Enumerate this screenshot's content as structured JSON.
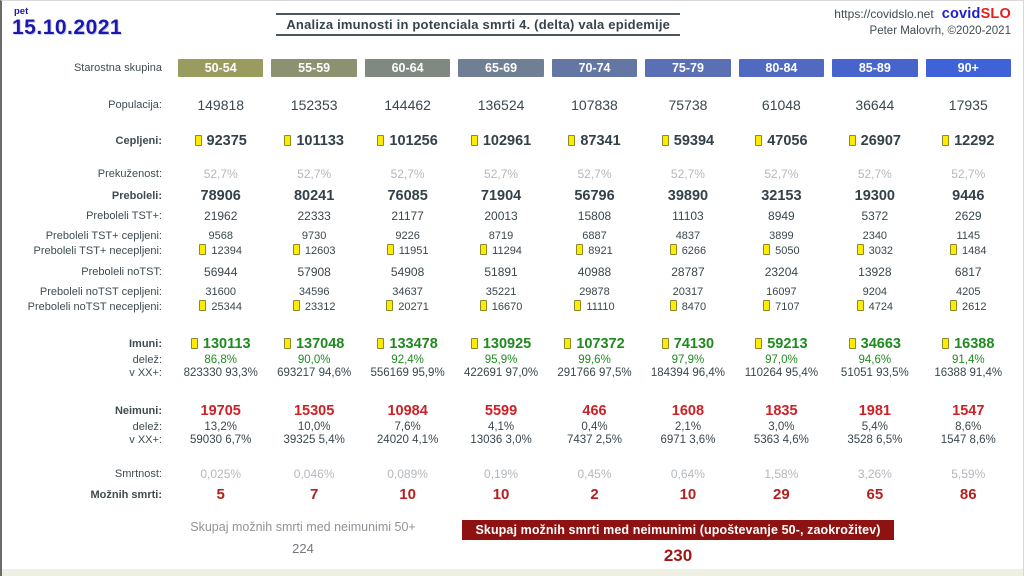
{
  "header": {
    "weekday": "pet",
    "date": "15.10.2021",
    "title": "Analiza imunosti in potenciala smrti 4. (delta) vala epidemije",
    "site_url": "https://covidslo.net",
    "brand": {
      "covid": "covid",
      "slo": "SLO"
    },
    "author": "Peter Malovrh, ©2020-2021"
  },
  "table": {
    "age_group_label": "Starostna skupina",
    "age_groups": [
      {
        "label": "50-54",
        "color": "#9a9b5f"
      },
      {
        "label": "55-59",
        "color": "#8b9171"
      },
      {
        "label": "60-64",
        "color": "#7f8982"
      },
      {
        "label": "65-69",
        "color": "#707f93"
      },
      {
        "label": "70-74",
        "color": "#6476a4"
      },
      {
        "label": "75-79",
        "color": "#5a6fb4"
      },
      {
        "label": "80-84",
        "color": "#5069c1"
      },
      {
        "label": "85-89",
        "color": "#4764cd"
      },
      {
        "label": "90+",
        "color": "#3f62d8"
      }
    ],
    "labels": {
      "populacija": "Populacija:",
      "cepljeni": "Cepljeni:",
      "prekuzenost": "Prekuženost:",
      "preboleli": "Preboleli:",
      "preboleli_tst": "Preboleli TST+:",
      "preboleli_tst_cepljeni": "Preboleli TST+ cepljeni:",
      "preboleli_tst_necepljeni": "Preboleli TST+ necepljeni:",
      "preboleli_notst": "Preboleli noTST:",
      "preboleli_notst_cepljeni": "Preboleli noTST cepljeni:",
      "preboleli_notst_necepljeni": "Preboleli noTST necepljeni:",
      "imuni": "Imuni:",
      "delez": "delež:",
      "v_xx": "v XX+:",
      "neimuni": "Neimuni:",
      "smrtnost": "Smrtnost:",
      "moznih_smrti": "Možnih smrti:"
    },
    "values": {
      "populacija": [
        "149818",
        "152353",
        "144462",
        "136524",
        "107838",
        "75738",
        "61048",
        "36644",
        "17935"
      ],
      "cepljeni": [
        "92375",
        "101133",
        "101256",
        "102961",
        "87341",
        "59394",
        "47056",
        "26907",
        "12292"
      ],
      "prekuzenost": [
        "52,7%",
        "52,7%",
        "52,7%",
        "52,7%",
        "52,7%",
        "52,7%",
        "52,7%",
        "52,7%",
        "52,7%"
      ],
      "preboleli": [
        "78906",
        "80241",
        "76085",
        "71904",
        "56796",
        "39890",
        "32153",
        "19300",
        "9446"
      ],
      "preboleli_tst": [
        "21962",
        "22333",
        "21177",
        "20013",
        "15808",
        "11103",
        "8949",
        "5372",
        "2629"
      ],
      "preboleli_tst_cepljeni": [
        "9568",
        "9730",
        "9226",
        "8719",
        "6887",
        "4837",
        "3899",
        "2340",
        "1145"
      ],
      "preboleli_tst_necepljeni": [
        "12394",
        "12603",
        "11951",
        "11294",
        "8921",
        "6266",
        "5050",
        "3032",
        "1484"
      ],
      "preboleli_notst": [
        "56944",
        "57908",
        "54908",
        "51891",
        "40988",
        "28787",
        "23204",
        "13928",
        "6817"
      ],
      "preboleli_notst_cepljeni": [
        "31600",
        "34596",
        "34637",
        "35221",
        "29878",
        "20317",
        "16097",
        "9204",
        "4205"
      ],
      "preboleli_notst_necepljeni": [
        "25344",
        "23312",
        "20271",
        "16670",
        "11110",
        "8470",
        "7107",
        "4724",
        "2612"
      ],
      "imuni": [
        "130113",
        "137048",
        "133478",
        "130925",
        "107372",
        "74130",
        "59213",
        "34663",
        "16388"
      ],
      "imuni_delez": [
        "86,8%",
        "90,0%",
        "92,4%",
        "95,9%",
        "99,6%",
        "97,9%",
        "97,0%",
        "94,6%",
        "91,4%"
      ],
      "imuni_v_xx": [
        "823330 93,3%",
        "693217 94,6%",
        "556169 95,9%",
        "422691 97,0%",
        "291766 97,5%",
        "184394 96,4%",
        "110264 95,4%",
        "51051 93,5%",
        "16388 91,4%"
      ],
      "neimuni": [
        "19705",
        "15305",
        "10984",
        "5599",
        "466",
        "1608",
        "1835",
        "1981",
        "1547"
      ],
      "neimuni_delez": [
        "13,2%",
        "10,0%",
        "7,6%",
        "4,1%",
        "0,4%",
        "2,1%",
        "3,0%",
        "5,4%",
        "8,6%"
      ],
      "neimuni_v_xx": [
        "59030 6,7%",
        "39325 5,4%",
        "24020 4,1%",
        "13036 3,0%",
        "7437 2,5%",
        "6971 3,6%",
        "5363 4,6%",
        "3528 6,5%",
        "1547 8,6%"
      ],
      "smrtnost": [
        "0,025%",
        "0,046%",
        "0,089%",
        "0,19%",
        "0,45%",
        "0,64%",
        "1,58%",
        "3,26%",
        "5,59%"
      ],
      "moznih_smrti": [
        "5",
        "7",
        "10",
        "10",
        "2",
        "10",
        "29",
        "65",
        "86"
      ]
    }
  },
  "footer": {
    "left_label": "Skupaj možnih smrti med neimunimi 50+",
    "left_value": "224",
    "banner_label": "Skupaj možnih smrti med neimunimi (upoštevanje 50-, zaokrožitev)",
    "banner_value": "230"
  },
  "colors": {
    "accent_green": "#1f8b1f",
    "accent_red": "#cc2127",
    "dark_red": "#8e1212",
    "muted_gray": "#b4b8bc",
    "text": "#3e4c52",
    "date_blue": "#1b18ae",
    "brand_blue": "#1f1fd0",
    "brand_red": "#e3201b",
    "marker_yellow": "#feec00"
  }
}
